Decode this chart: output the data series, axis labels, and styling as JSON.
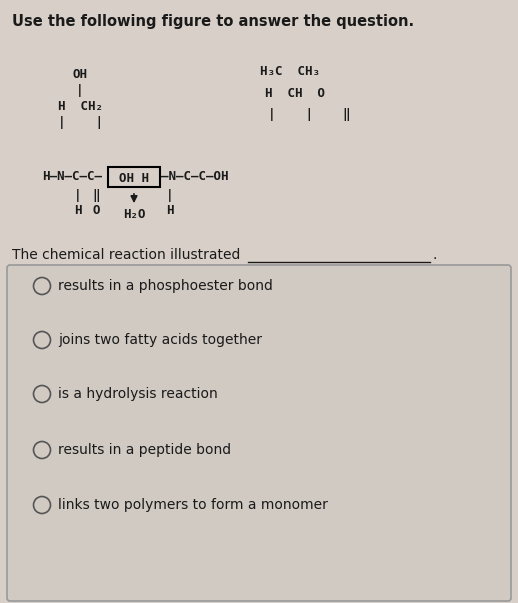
{
  "title": "Use the following figure to answer the question.",
  "question_text": "The chemical reaction illustrated",
  "bg_color": "#d8d0c8",
  "box_bg": "#d0cac2",
  "text_color": "#1a1a1a",
  "options": [
    "results in a phosphoester bond",
    "joins two fatty acids together",
    "is a hydrolysis reaction",
    "results in a peptide bond",
    "links two polymers to form a monomer"
  ],
  "fig_width": 5.18,
  "fig_height": 6.03,
  "dpi": 100
}
